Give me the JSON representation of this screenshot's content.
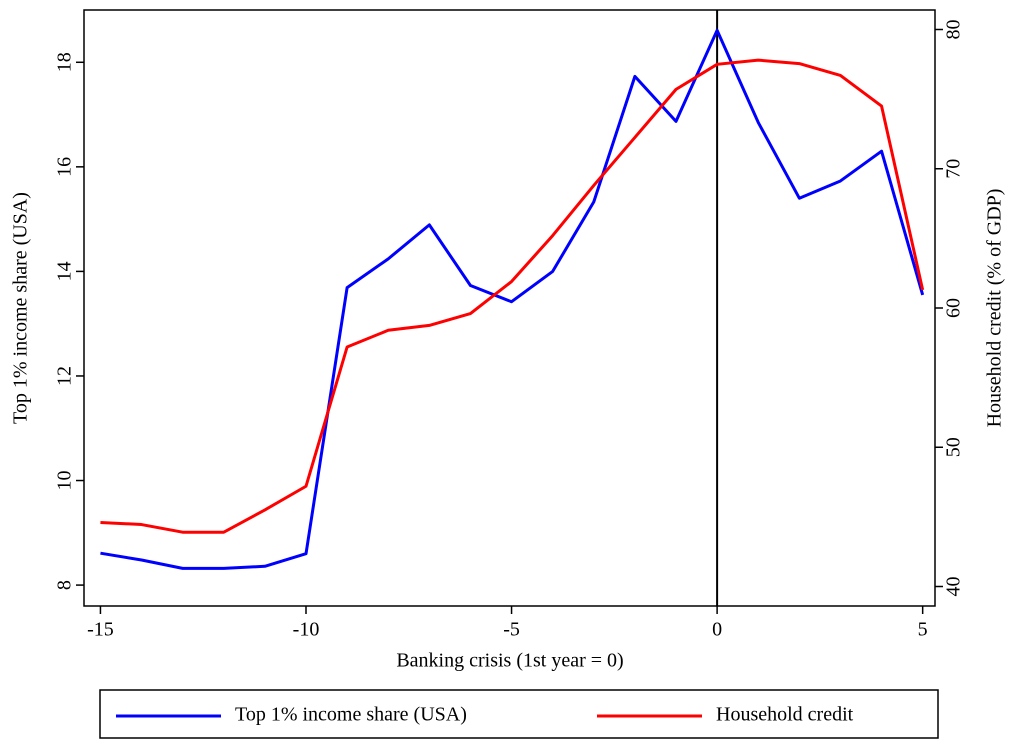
{
  "chart_data": {
    "type": "line",
    "x": [
      -15,
      -14,
      -13,
      -12,
      -11,
      -10,
      -9,
      -8,
      -7,
      -6,
      -5,
      -4,
      -3,
      -2,
      -1,
      0,
      1,
      2,
      3,
      4,
      5
    ],
    "series": [
      {
        "name": "Top 1% income share (USA)",
        "color": "#0000ff",
        "values": [
          8.61,
          8.48,
          8.32,
          8.32,
          8.36,
          8.6,
          13.69,
          14.24,
          14.89,
          13.73,
          13.42,
          14.0,
          15.33,
          17.73,
          16.87,
          18.61,
          16.85,
          15.4,
          15.73,
          16.3,
          13.55
        ]
      },
      {
        "name": "Household credit",
        "color": "#ff0000",
        "axis": "y2",
        "values": [
          44.6,
          44.45,
          43.9,
          43.9,
          45.5,
          47.2,
          57.2,
          58.4,
          58.75,
          59.6,
          61.9,
          65.2,
          68.8,
          72.25,
          75.7,
          77.5,
          77.8,
          77.55,
          76.7,
          74.5,
          61.3
        ]
      }
    ],
    "xlabel": "Banking crisis (1st year = 0)",
    "ylabel": "Top 1% income share (USA)",
    "y2label": "Household credit (% of GDP)",
    "xlim": [
      -15.4,
      5.3
    ],
    "xticks": [
      -15,
      -10,
      -5,
      0,
      5
    ],
    "ylim": [
      7.6,
      19
    ],
    "yticks": [
      8,
      10,
      12,
      14,
      16,
      18
    ],
    "y2lim": [
      38.6,
      81.4
    ],
    "y2ticks": [
      40,
      50,
      60,
      70,
      80
    ],
    "vline": 0,
    "legend": "bottom"
  }
}
